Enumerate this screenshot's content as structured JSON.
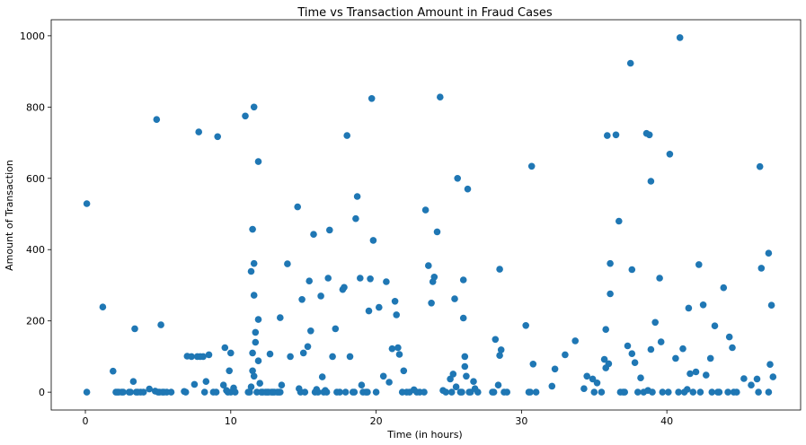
{
  "chart_data": {
    "type": "scatter",
    "title": "Time vs Transaction Amount in Fraud Cases",
    "xlabel": "Time (in hours)",
    "ylabel": "Amount of Transaction",
    "xlim": [
      -2.35,
      49.2
    ],
    "ylim": [
      -50,
      1045
    ],
    "xticks": [
      0,
      10,
      20,
      30,
      40
    ],
    "yticks": [
      0,
      200,
      400,
      600,
      800,
      1000
    ],
    "grid": false,
    "marker_color": "#1f77b4",
    "points": [
      [
        0.1,
        529
      ],
      [
        0.1,
        0
      ],
      [
        1.2,
        239
      ],
      [
        1.9,
        59
      ],
      [
        2.1,
        0
      ],
      [
        2.3,
        0
      ],
      [
        2.5,
        0
      ],
      [
        3.1,
        0
      ],
      [
        3.3,
        30
      ],
      [
        3.4,
        178
      ],
      [
        3.5,
        0
      ],
      [
        3.8,
        0
      ],
      [
        4.0,
        0
      ],
      [
        4.4,
        9
      ],
      [
        4.8,
        3
      ],
      [
        4.9,
        765
      ],
      [
        5.1,
        0
      ],
      [
        5.2,
        189
      ],
      [
        5.4,
        0
      ],
      [
        5.6,
        0
      ],
      [
        5.9,
        0
      ],
      [
        6.8,
        2
      ],
      [
        7.0,
        101
      ],
      [
        7.3,
        100
      ],
      [
        7.5,
        22
      ],
      [
        7.7,
        100
      ],
      [
        7.8,
        730
      ],
      [
        7.9,
        100
      ],
      [
        8.1,
        100
      ],
      [
        8.2,
        0
      ],
      [
        8.3,
        30
      ],
      [
        8.5,
        105
      ],
      [
        9.1,
        717
      ],
      [
        9.0,
        0
      ],
      [
        9.5,
        20
      ],
      [
        9.6,
        125
      ],
      [
        9.8,
        0
      ],
      [
        9.9,
        60
      ],
      [
        10.0,
        110
      ],
      [
        10.2,
        12
      ],
      [
        10.0,
        0
      ],
      [
        11.0,
        775
      ],
      [
        11.2,
        0
      ],
      [
        11.4,
        339
      ],
      [
        11.5,
        457
      ],
      [
        11.5,
        110
      ],
      [
        11.6,
        800
      ],
      [
        11.6,
        361
      ],
      [
        11.6,
        272
      ],
      [
        11.7,
        168
      ],
      [
        11.7,
        140
      ],
      [
        11.5,
        60
      ],
      [
        11.6,
        45
      ],
      [
        11.8,
        0
      ],
      [
        11.9,
        647
      ],
      [
        11.9,
        204
      ],
      [
        11.9,
        88
      ],
      [
        12.0,
        25
      ],
      [
        12.2,
        0
      ],
      [
        12.5,
        0
      ],
      [
        12.7,
        107
      ],
      [
        12.9,
        0
      ],
      [
        13.2,
        0
      ],
      [
        13.4,
        0
      ],
      [
        13.4,
        209
      ],
      [
        13.5,
        20
      ],
      [
        13.9,
        360
      ],
      [
        14.1,
        100
      ],
      [
        14.6,
        520
      ],
      [
        14.8,
        0
      ],
      [
        14.9,
        260
      ],
      [
        15.0,
        110
      ],
      [
        15.3,
        128
      ],
      [
        15.4,
        312
      ],
      [
        15.5,
        172
      ],
      [
        15.7,
        443
      ],
      [
        15.8,
        0
      ],
      [
        16.0,
        0
      ],
      [
        16.2,
        270
      ],
      [
        16.3,
        43
      ],
      [
        16.5,
        5
      ],
      [
        16.7,
        320
      ],
      [
        16.8,
        455
      ],
      [
        17.0,
        100
      ],
      [
        17.2,
        178
      ],
      [
        17.5,
        0
      ],
      [
        17.7,
        288
      ],
      [
        17.8,
        294
      ],
      [
        18.0,
        720
      ],
      [
        18.2,
        100
      ],
      [
        18.4,
        0
      ],
      [
        18.6,
        487
      ],
      [
        18.7,
        549
      ],
      [
        18.9,
        320
      ],
      [
        19.0,
        20
      ],
      [
        19.3,
        0
      ],
      [
        19.5,
        228
      ],
      [
        19.6,
        318
      ],
      [
        19.7,
        824
      ],
      [
        19.8,
        426
      ],
      [
        20.2,
        238
      ],
      [
        20.5,
        45
      ],
      [
        20.7,
        310
      ],
      [
        20.9,
        28
      ],
      [
        21.1,
        122
      ],
      [
        21.3,
        255
      ],
      [
        21.4,
        217
      ],
      [
        21.5,
        125
      ],
      [
        21.6,
        106
      ],
      [
        21.9,
        60
      ],
      [
        22.1,
        0
      ],
      [
        22.6,
        7
      ],
      [
        23.0,
        0
      ],
      [
        23.4,
        511
      ],
      [
        23.6,
        355
      ],
      [
        23.8,
        250
      ],
      [
        23.9,
        310
      ],
      [
        24.0,
        323
      ],
      [
        24.2,
        450
      ],
      [
        24.4,
        828
      ],
      [
        24.6,
        5
      ],
      [
        25.1,
        37
      ],
      [
        25.3,
        51
      ],
      [
        25.4,
        262
      ],
      [
        25.6,
        600
      ],
      [
        25.8,
        0
      ],
      [
        26.0,
        315
      ],
      [
        26.0,
        208
      ],
      [
        26.1,
        100
      ],
      [
        26.1,
        72
      ],
      [
        26.2,
        45
      ],
      [
        26.3,
        570
      ],
      [
        26.5,
        0
      ],
      [
        26.7,
        30
      ],
      [
        28.0,
        0
      ],
      [
        28.2,
        148
      ],
      [
        28.4,
        20
      ],
      [
        28.5,
        345
      ],
      [
        28.6,
        119
      ],
      [
        28.5,
        103
      ],
      [
        29.0,
        0
      ],
      [
        30.3,
        187
      ],
      [
        30.5,
        0
      ],
      [
        30.7,
        634
      ],
      [
        30.8,
        79
      ],
      [
        31.0,
        0
      ],
      [
        32.1,
        17
      ],
      [
        32.3,
        65
      ],
      [
        33.0,
        105
      ],
      [
        33.7,
        144
      ],
      [
        34.3,
        10
      ],
      [
        34.5,
        45
      ],
      [
        34.9,
        37
      ],
      [
        35.0,
        0
      ],
      [
        35.2,
        26
      ],
      [
        35.7,
        92
      ],
      [
        35.8,
        68
      ],
      [
        35.8,
        176
      ],
      [
        35.9,
        720
      ],
      [
        36.0,
        80
      ],
      [
        36.1,
        361
      ],
      [
        36.1,
        276
      ],
      [
        36.5,
        722
      ],
      [
        36.7,
        480
      ],
      [
        37.0,
        0
      ],
      [
        37.3,
        130
      ],
      [
        37.5,
        923
      ],
      [
        37.6,
        344
      ],
      [
        37.6,
        108
      ],
      [
        37.8,
        83
      ],
      [
        38.2,
        40
      ],
      [
        38.6,
        726
      ],
      [
        38.8,
        722
      ],
      [
        38.9,
        592
      ],
      [
        38.9,
        120
      ],
      [
        39.2,
        196
      ],
      [
        39.5,
        320
      ],
      [
        39.6,
        141
      ],
      [
        40.2,
        668
      ],
      [
        40.6,
        95
      ],
      [
        40.9,
        995
      ],
      [
        41.1,
        122
      ],
      [
        41.4,
        8
      ],
      [
        41.5,
        236
      ],
      [
        41.6,
        52
      ],
      [
        42.0,
        57
      ],
      [
        42.2,
        358
      ],
      [
        42.5,
        245
      ],
      [
        42.7,
        48
      ],
      [
        43.0,
        95
      ],
      [
        43.3,
        186
      ],
      [
        43.6,
        0
      ],
      [
        43.9,
        293
      ],
      [
        44.3,
        155
      ],
      [
        44.5,
        125
      ],
      [
        44.8,
        0
      ],
      [
        45.3,
        38
      ],
      [
        45.8,
        20
      ],
      [
        46.2,
        37
      ],
      [
        46.4,
        633
      ],
      [
        46.5,
        348
      ],
      [
        47.0,
        390
      ],
      [
        47.1,
        78
      ],
      [
        47.2,
        244
      ],
      [
        47.3,
        43
      ],
      [
        2.2,
        0
      ],
      [
        2.6,
        0
      ],
      [
        3.0,
        0
      ],
      [
        3.6,
        0
      ],
      [
        5.0,
        0
      ],
      [
        5.3,
        0
      ],
      [
        6.9,
        0
      ],
      [
        8.8,
        0
      ],
      [
        9.7,
        5
      ],
      [
        10.3,
        0
      ],
      [
        11.3,
        0
      ],
      [
        11.4,
        15
      ],
      [
        12.1,
        0
      ],
      [
        12.4,
        0
      ],
      [
        12.6,
        0
      ],
      [
        12.8,
        0
      ],
      [
        13.0,
        0
      ],
      [
        13.3,
        0
      ],
      [
        14.7,
        10
      ],
      [
        15.1,
        0
      ],
      [
        15.9,
        8
      ],
      [
        16.4,
        0
      ],
      [
        16.6,
        0
      ],
      [
        17.3,
        0
      ],
      [
        17.9,
        0
      ],
      [
        18.5,
        0
      ],
      [
        19.1,
        0
      ],
      [
        19.4,
        0
      ],
      [
        20.0,
        0
      ],
      [
        21.8,
        0
      ],
      [
        22.3,
        0
      ],
      [
        22.8,
        0
      ],
      [
        23.3,
        0
      ],
      [
        24.8,
        0
      ],
      [
        25.2,
        0
      ],
      [
        25.5,
        15
      ],
      [
        25.9,
        0
      ],
      [
        26.4,
        0
      ],
      [
        26.8,
        10
      ],
      [
        27.0,
        0
      ],
      [
        28.1,
        0
      ],
      [
        28.8,
        0
      ],
      [
        30.6,
        0
      ],
      [
        35.5,
        0
      ],
      [
        36.8,
        0
      ],
      [
        37.1,
        0
      ],
      [
        38.0,
        0
      ],
      [
        38.4,
        0
      ],
      [
        38.7,
        5
      ],
      [
        39.0,
        0
      ],
      [
        39.7,
        0
      ],
      [
        40.1,
        0
      ],
      [
        40.8,
        0
      ],
      [
        41.2,
        0
      ],
      [
        41.8,
        0
      ],
      [
        42.3,
        0
      ],
      [
        43.1,
        0
      ],
      [
        43.5,
        0
      ],
      [
        44.2,
        0
      ],
      [
        44.6,
        0
      ],
      [
        46.3,
        0
      ],
      [
        47.0,
        0
      ]
    ]
  }
}
